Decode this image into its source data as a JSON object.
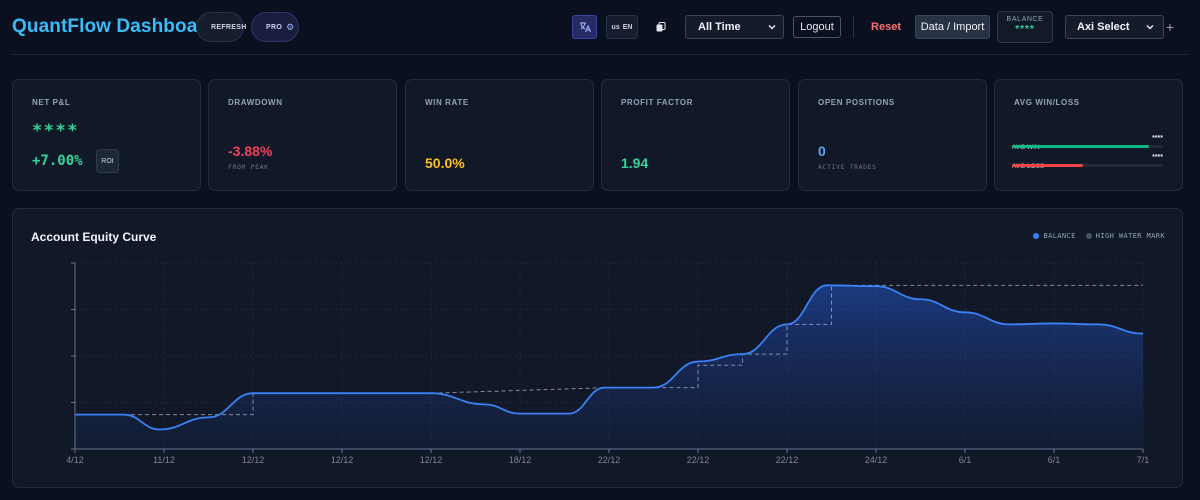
{
  "header": {
    "title": "QuantFlow Dashboard",
    "refresh_label": "REFRESH",
    "pro_label": "PRO",
    "lang_flag": "us",
    "lang_code": "EN",
    "time_range": "All Time",
    "logout_label": "Logout",
    "reset_label": "Reset",
    "import_label": "Data / Import",
    "balance_label": "BALANCE",
    "balance_value": "****",
    "account_select": "Axi Select",
    "add_label": "+"
  },
  "cards": {
    "pnl": {
      "title": "NET P&L",
      "value": "****",
      "pct": "+7.00%",
      "badge": "ROI"
    },
    "drawdown": {
      "title": "DRAWDOWN",
      "value": "-3.88%",
      "sub": "FROM PEAK"
    },
    "winrate": {
      "title": "WIN RATE",
      "value": "50.0%"
    },
    "profit_factor": {
      "title": "PROFIT FACTOR",
      "value": "1.94"
    },
    "positions": {
      "title": "OPEN POSITIONS",
      "value": "0",
      "sub": "ACTIVE TRADES"
    },
    "avg_winloss": {
      "title": "AVG WIN/LOSS",
      "win_label": "AVG WIN",
      "win_value": "****",
      "win_fraction": 0.91,
      "loss_label": "AVG LOSS",
      "loss_value": "****",
      "loss_fraction": 0.47
    }
  },
  "colors": {
    "accent": "#38bdf8",
    "positive": "#34d399",
    "negative": "#f43f5e",
    "warning": "#fbbf24",
    "balance_line": "#3b82f6",
    "hwm_line": "#94a3b8"
  },
  "chart_data": {
    "type": "area",
    "title": "Account Equity Curve",
    "legend": [
      "BALANCE",
      "HIGH WATER MARK"
    ],
    "legend_position": "top-right",
    "x_labels": [
      "4/12",
      "11/12",
      "12/12",
      "12/12",
      "12/12",
      "18/12",
      "22/12",
      "22/12",
      "22/12",
      "24/12",
      "6/1",
      "6/1",
      "7/1"
    ],
    "ylim": [
      0,
      100
    ],
    "grid": true,
    "series": [
      {
        "name": "BALANCE",
        "x": [
          0,
          0.55,
          0.95,
          1.5,
          2.0,
          2.5,
          4.0,
          4.6,
          5.0,
          5.55,
          5.95,
          6.5,
          7.0,
          7.5,
          8.0,
          8.45,
          9.0,
          9.5,
          10.0,
          10.5,
          11.0,
          11.5,
          12.0
        ],
        "values": [
          18.5,
          18.5,
          10.5,
          17,
          30,
          30,
          30,
          24,
          19,
          19,
          33,
          33,
          47,
          51,
          67,
          88,
          87.5,
          80.5,
          73.5,
          67,
          67.5,
          67,
          62
        ]
      },
      {
        "name": "HIGH WATER MARK",
        "x": [
          0,
          2.0,
          2.0,
          4.0,
          4.0,
          6.0,
          6.0,
          7.0,
          7.0,
          7.5,
          7.5,
          8.0,
          8.0,
          8.5,
          8.5,
          12.0
        ],
        "values": [
          18.5,
          18.5,
          30,
          30,
          30,
          33,
          33,
          33,
          45,
          45,
          51,
          51,
          67,
          67,
          88,
          88
        ]
      }
    ]
  }
}
